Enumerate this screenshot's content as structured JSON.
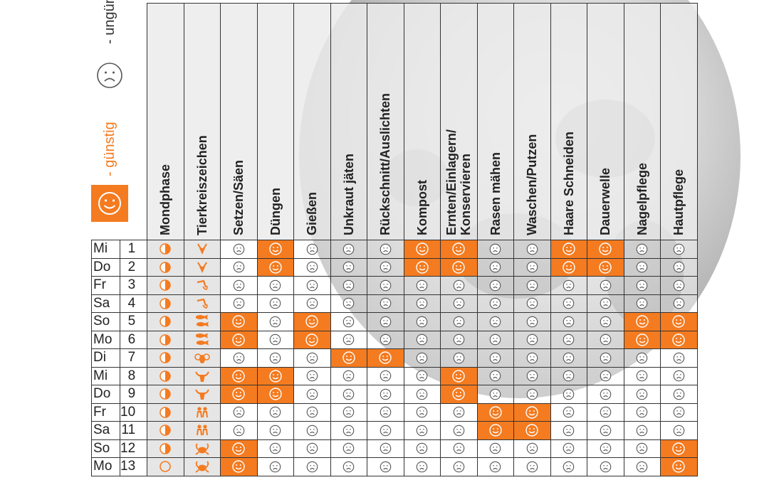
{
  "legend": {
    "favorable_label": "- günstig",
    "unfavorable_label": "- ungünstig"
  },
  "headers": [
    "Mondphase",
    "Tierkreiszeichen",
    "Setzen/Säen",
    "Düngen",
    "Gießen",
    "Unkraut jäten",
    "Rückschnitt/Auslichten",
    "Kompost",
    "Ernten/Einlagern/\nKonservieren",
    "Rasen mähen",
    "Waschen/Putzen",
    "Haare Schneiden",
    "Dauerwelle",
    "Nagelpflege",
    "Hautpflege"
  ],
  "colors": {
    "favorable": "#f47b20",
    "unfavorable": "#ffffff"
  },
  "rows": [
    {
      "day": "Mi",
      "date": "1",
      "phase": "waxing",
      "zodiac": "steinbock",
      "marks": [
        0,
        1,
        0,
        0,
        0,
        1,
        1,
        0,
        0,
        1,
        1,
        0,
        0
      ]
    },
    {
      "day": "Do",
      "date": "2",
      "phase": "waxing",
      "zodiac": "steinbock",
      "marks": [
        0,
        1,
        0,
        0,
        0,
        1,
        1,
        0,
        0,
        1,
        1,
        0,
        0
      ]
    },
    {
      "day": "Fr",
      "date": "3",
      "phase": "waxing",
      "zodiac": "wassermann",
      "marks": [
        0,
        0,
        0,
        0,
        0,
        0,
        0,
        0,
        0,
        0,
        0,
        0,
        0
      ]
    },
    {
      "day": "Sa",
      "date": "4",
      "phase": "waxing",
      "zodiac": "wassermann",
      "marks": [
        0,
        0,
        0,
        0,
        0,
        0,
        0,
        0,
        0,
        0,
        0,
        0,
        0
      ]
    },
    {
      "day": "So",
      "date": "5",
      "phase": "waxing",
      "zodiac": "fische",
      "marks": [
        1,
        0,
        1,
        0,
        0,
        0,
        0,
        0,
        0,
        0,
        0,
        1,
        1
      ]
    },
    {
      "day": "Mo",
      "date": "6",
      "phase": "waxing",
      "zodiac": "fische",
      "marks": [
        1,
        0,
        1,
        0,
        0,
        0,
        0,
        0,
        0,
        0,
        0,
        1,
        1
      ]
    },
    {
      "day": "Di",
      "date": "7",
      "phase": "waxing",
      "zodiac": "widder",
      "marks": [
        0,
        0,
        0,
        1,
        1,
        0,
        0,
        0,
        0,
        0,
        0,
        0,
        0
      ]
    },
    {
      "day": "Mi",
      "date": "8",
      "phase": "waxing",
      "zodiac": "stier",
      "marks": [
        1,
        1,
        0,
        0,
        0,
        0,
        1,
        0,
        0,
        0,
        0,
        0,
        0
      ]
    },
    {
      "day": "Do",
      "date": "9",
      "phase": "waxing",
      "zodiac": "stier",
      "marks": [
        1,
        1,
        0,
        0,
        0,
        0,
        1,
        0,
        0,
        0,
        0,
        0,
        0
      ]
    },
    {
      "day": "Fr",
      "date": "10",
      "phase": "waxing",
      "zodiac": "zwillinge",
      "marks": [
        0,
        0,
        0,
        0,
        0,
        0,
        0,
        1,
        1,
        0,
        0,
        0,
        0
      ]
    },
    {
      "day": "Sa",
      "date": "11",
      "phase": "waxing",
      "zodiac": "zwillinge",
      "marks": [
        0,
        0,
        0,
        0,
        0,
        0,
        0,
        1,
        1,
        0,
        0,
        0,
        0
      ]
    },
    {
      "day": "So",
      "date": "12",
      "phase": "waxing",
      "zodiac": "krebs",
      "marks": [
        1,
        0,
        0,
        0,
        0,
        0,
        0,
        0,
        0,
        0,
        0,
        0,
        1
      ]
    },
    {
      "day": "Mo",
      "date": "13",
      "phase": "full",
      "zodiac": "krebs",
      "marks": [
        1,
        0,
        0,
        0,
        0,
        0,
        0,
        0,
        0,
        0,
        0,
        0,
        1
      ]
    }
  ]
}
